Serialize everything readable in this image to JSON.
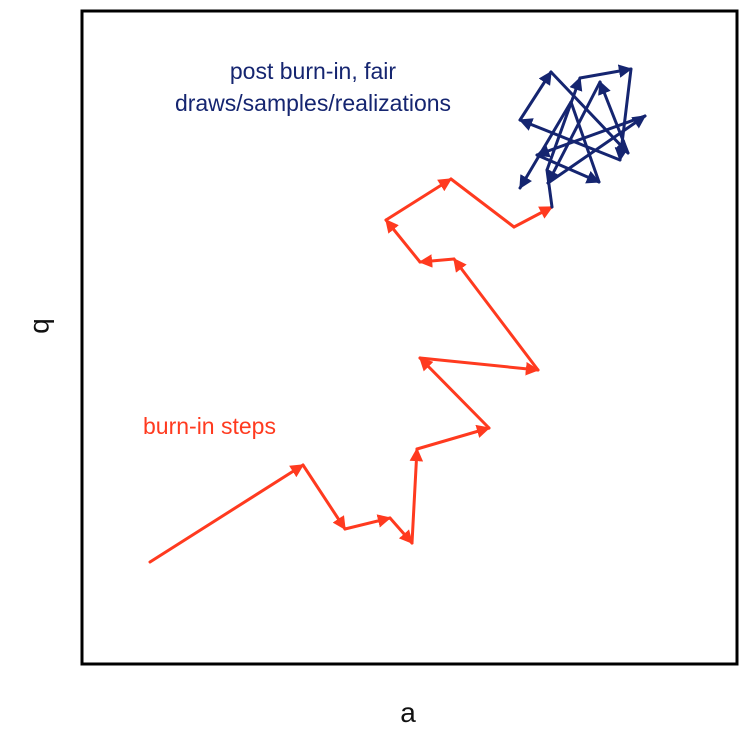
{
  "labels": {
    "x_axis": "a",
    "y_axis": "b",
    "burn_in": "burn-in steps",
    "post_line1": "post burn-in, fair",
    "post_line2": "draws/samples/realizations"
  },
  "colors": {
    "frame": "#000000",
    "burn_in": "#ff3a1f",
    "post": "#152570",
    "axis_text": "#111111"
  }
}
